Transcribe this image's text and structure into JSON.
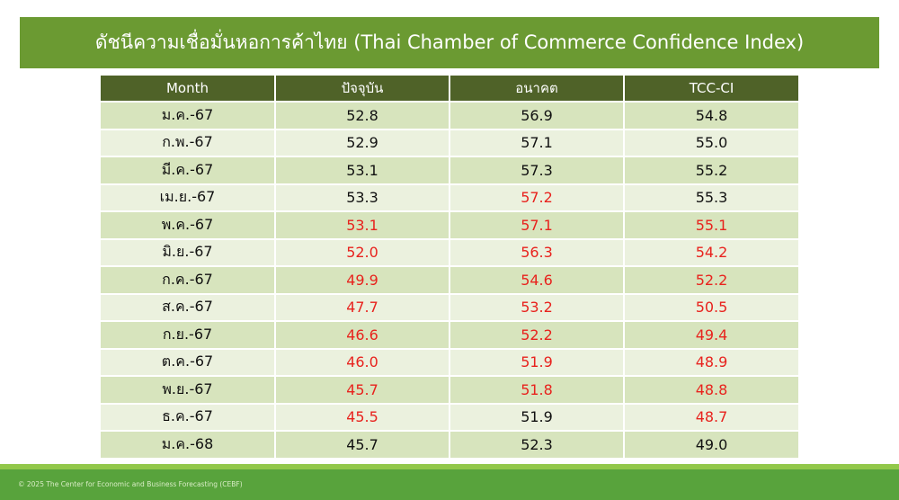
{
  "title": "ดัชนีความเชื่อมั่นหอการค้าไทย (Thai Chamber of Commerce Confidence Index)",
  "colors": {
    "title_bg": "#6b9a32",
    "header_bg": "#4f6228",
    "row_odd": "#d7e4bd",
    "row_even": "#ebf1de",
    "highlight_red": "#e8221d",
    "footer": "#58a33c"
  },
  "table": {
    "headers": [
      "Month",
      "ปัจจุบัน",
      "อนาคต",
      "TCC-CI"
    ],
    "rows": [
      {
        "cells": [
          "ม.ค.-67",
          "52.8",
          "56.9",
          "54.8"
        ],
        "red": [
          false,
          false,
          false
        ]
      },
      {
        "cells": [
          "ก.พ.-67",
          "52.9",
          "57.1",
          "55.0"
        ],
        "red": [
          false,
          false,
          false
        ]
      },
      {
        "cells": [
          "มี.ค.-67",
          "53.1",
          "57.3",
          "55.2"
        ],
        "red": [
          false,
          false,
          false
        ]
      },
      {
        "cells": [
          "เม.ย.-67",
          "53.3",
          "57.2",
          "55.3"
        ],
        "red": [
          false,
          true,
          false
        ]
      },
      {
        "cells": [
          "พ.ค.-67",
          "53.1",
          "57.1",
          "55.1"
        ],
        "red": [
          true,
          true,
          true
        ]
      },
      {
        "cells": [
          "มิ.ย.-67",
          "52.0",
          "56.3",
          "54.2"
        ],
        "red": [
          true,
          true,
          true
        ]
      },
      {
        "cells": [
          "ก.ค.-67",
          "49.9",
          "54.6",
          "52.2"
        ],
        "red": [
          true,
          true,
          true
        ]
      },
      {
        "cells": [
          "ส.ค.-67",
          "47.7",
          "53.2",
          "50.5"
        ],
        "red": [
          true,
          true,
          true
        ]
      },
      {
        "cells": [
          "ก.ย.-67",
          "46.6",
          "52.2",
          "49.4"
        ],
        "red": [
          true,
          true,
          true
        ]
      },
      {
        "cells": [
          "ต.ค.-67",
          "46.0",
          "51.9",
          "48.9"
        ],
        "red": [
          true,
          true,
          true
        ]
      },
      {
        "cells": [
          "พ.ย.-67",
          "45.7",
          "51.8",
          "48.8"
        ],
        "red": [
          true,
          true,
          true
        ]
      },
      {
        "cells": [
          "ธ.ค.-67",
          "45.5",
          "51.9",
          "48.7"
        ],
        "red": [
          true,
          false,
          true
        ]
      },
      {
        "cells": [
          "ม.ค.-68",
          "45.7",
          "52.3",
          "49.0"
        ],
        "red": [
          false,
          false,
          false
        ]
      }
    ]
  },
  "footer": {
    "copyright": "© 2025 The Center for Economic and Business Forecasting (CEBF)"
  }
}
